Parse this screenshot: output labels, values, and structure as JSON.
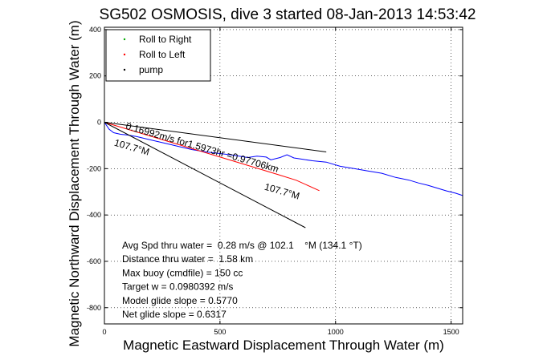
{
  "chart_data": {
    "type": "line",
    "title": "SG502 OSMOSIS, dive 3 started 08-Jan-2013 14:53:42",
    "xlabel": "Magnetic Eastward Displacement Through Water (m)",
    "ylabel": "Magnetic Northward Displacement Through Water (m)",
    "xlim": [
      0,
      1550
    ],
    "ylim": [
      -870,
      410
    ],
    "xticks": [
      0,
      500,
      1000,
      1500
    ],
    "yticks": [
      400,
      200,
      0,
      -200,
      -400,
      -600,
      -800
    ],
    "grid": true,
    "grid_style": "dotted",
    "legend_position": "top-left",
    "legend": [
      {
        "label": "Roll to Right",
        "color": "#00aa00",
        "marker": "dot"
      },
      {
        "label": "Roll to Left",
        "color": "#ff0000",
        "marker": "dot"
      },
      {
        "label": "pump",
        "color": "#000000",
        "marker": "dot"
      }
    ],
    "series": [
      {
        "color": "#0000ff",
        "x": [
          0,
          20,
          40,
          70,
          100,
          140,
          200,
          260,
          320,
          380,
          440,
          500,
          560,
          620,
          660,
          700,
          720,
          760,
          790,
          820,
          860,
          900,
          960,
          1020,
          1080,
          1140,
          1200,
          1260,
          1320,
          1360,
          1400,
          1440,
          1480,
          1520,
          1550
        ],
        "y": [
          0,
          -30,
          -45,
          -52,
          -55,
          -62,
          -76,
          -90,
          -104,
          -118,
          -128,
          -135,
          -142,
          -152,
          -146,
          -150,
          -162,
          -152,
          -140,
          -154,
          -160,
          -166,
          -172,
          -190,
          -200,
          -210,
          -220,
          -238,
          -250,
          -262,
          -272,
          -284,
          -296,
          -306,
          -316
        ]
      },
      {
        "color": "#ff0000",
        "x": [
          0,
          150,
          300,
          450,
          600,
          750,
          830,
          930
        ],
        "y": [
          0,
          -45,
          -90,
          -135,
          -180,
          -225,
          -250,
          -295
        ]
      },
      {
        "color": "#000000",
        "x": [
          0,
          960
        ],
        "y": [
          0,
          -128
        ]
      },
      {
        "color": "#000000",
        "x": [
          0,
          870
        ],
        "y": [
          0,
          -455
        ]
      }
    ],
    "annotations": [
      {
        "text": "0.16992m/s for1.5973hr =0.97706km",
        "x": 90,
        "y": -28,
        "angle": 16
      },
      {
        "text": "107.7°M",
        "x": 40,
        "y": -100,
        "angle": 16
      },
      {
        "text": "107.7°M",
        "x": 690,
        "y": -290,
        "angle": 16
      }
    ],
    "stats": [
      "Avg Spd thru water =  0.28 m/s @ 102.1    °M (134.1 °T)",
      "Distance thru water =  1.58 km",
      "Max buoy (cmdfile) = 150 cc",
      "Target w = 0.0980392 m/s",
      "Model glide slope = 0.5770",
      "Net glide slope = 0.6317"
    ]
  }
}
